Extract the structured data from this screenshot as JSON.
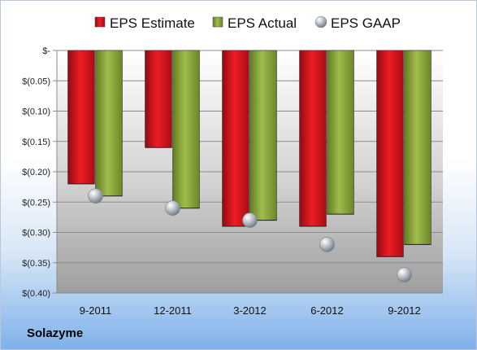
{
  "company": "Solazyme",
  "chart_data": {
    "type": "bar",
    "categories": [
      "9-2011",
      "12-2011",
      "3-2012",
      "6-2012",
      "9-2012"
    ],
    "series": [
      {
        "name": "EPS Estimate",
        "type": "bar",
        "color": "#d8131b",
        "values": [
          -0.22,
          -0.16,
          -0.29,
          -0.29,
          -0.34
        ]
      },
      {
        "name": "EPS Actual",
        "type": "bar",
        "color": "#8fae3c",
        "values": [
          -0.24,
          -0.26,
          -0.28,
          -0.27,
          -0.32
        ]
      },
      {
        "name": "EPS GAAP",
        "type": "scatter",
        "color": "#b9bec4",
        "values": [
          -0.24,
          -0.26,
          -0.28,
          -0.32,
          -0.37
        ]
      }
    ],
    "ylim": [
      -0.4,
      0
    ],
    "yticks": [
      {
        "value": 0,
        "label": "$-"
      },
      {
        "value": -0.05,
        "label": "$(0.05)"
      },
      {
        "value": -0.1,
        "label": "$(0.10)"
      },
      {
        "value": -0.15,
        "label": "$(0.15)"
      },
      {
        "value": -0.2,
        "label": "$(0.20)"
      },
      {
        "value": -0.25,
        "label": "$(0.25)"
      },
      {
        "value": -0.3,
        "label": "$(0.30)"
      },
      {
        "value": -0.35,
        "label": "$(0.35)"
      },
      {
        "value": -0.4,
        "label": "$(0.40)"
      }
    ],
    "legend_position": "top",
    "grid": true
  }
}
